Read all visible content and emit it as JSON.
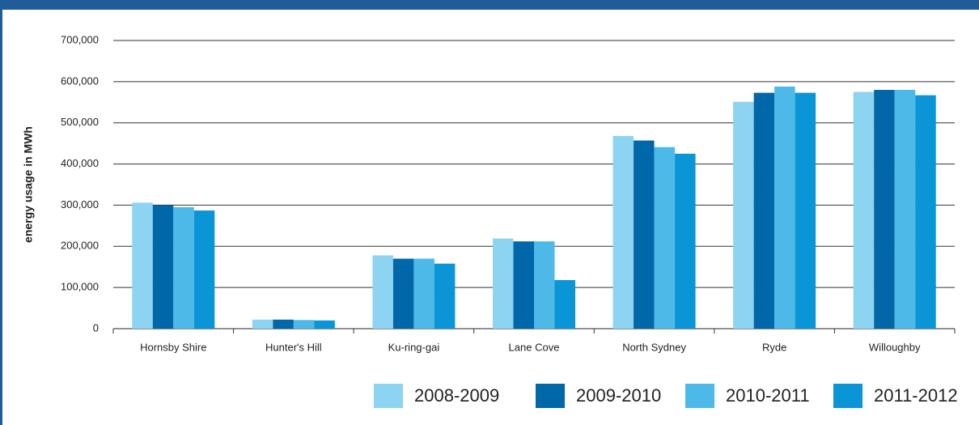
{
  "chart_data": {
    "type": "bar",
    "y_axis_label": "energy usage in MWh",
    "categories": [
      "Hornsby Shire",
      "Hunter's Hill",
      "Ku-ring-gai",
      "Lane Cove",
      "North Sydney",
      "Ryde",
      "Willoughby"
    ],
    "series": [
      {
        "name": "2008-2009",
        "color": "#8dd3f2",
        "values": [
          306000,
          22000,
          178000,
          219000,
          468000,
          551000,
          575000
        ]
      },
      {
        "name": "2009-2010",
        "color": "#0067a8",
        "values": [
          300000,
          22000,
          170000,
          212000,
          457000,
          573000,
          580000
        ]
      },
      {
        "name": "2010-2011",
        "color": "#4cb9e8",
        "values": [
          295000,
          21000,
          170000,
          212000,
          441000,
          588000,
          580000
        ]
      },
      {
        "name": "2011-2012",
        "color": "#0a95d6",
        "values": [
          287000,
          20000,
          158000,
          118000,
          425000,
          573000,
          567000
        ]
      }
    ],
    "ylim": [
      0,
      700000
    ],
    "yticks": [
      0,
      {
        "value": 100000,
        "label": "100,000"
      },
      {
        "value": 200000,
        "label": "200,000"
      },
      {
        "value": 300000,
        "label": "300,000"
      },
      {
        "value": 400000,
        "label": "400,000"
      },
      {
        "value": 500000,
        "label": "500,000"
      },
      {
        "value": 600000,
        "label": "600,000"
      },
      {
        "value": 700000,
        "label": "700,000"
      }
    ],
    "grid": true
  }
}
